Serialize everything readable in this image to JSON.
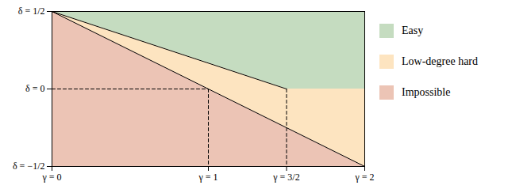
{
  "chart_data": {
    "type": "area",
    "xlim": [
      0,
      2
    ],
    "ylim": [
      -0.5,
      0.5
    ],
    "xticks": [
      {
        "value": 0,
        "label": "γ = 0"
      },
      {
        "value": 1,
        "label": "γ = 1"
      },
      {
        "value": 1.5,
        "label": "γ = 3/2"
      },
      {
        "value": 2,
        "label": "γ = 2"
      }
    ],
    "yticks": [
      {
        "value": 0.5,
        "label": "δ = 1/2"
      },
      {
        "value": 0,
        "label": "δ = 0"
      },
      {
        "value": -0.5,
        "label": "δ = −1/2"
      }
    ],
    "grid": false,
    "legend": "right",
    "series": [
      {
        "name": "Easy",
        "type": "area",
        "color": "#c5dcc0",
        "x": [
          0,
          1,
          1.5,
          2
        ],
        "values": [
          0.5,
          0.5,
          0.5,
          0.5
        ],
        "lower": [
          0.5,
          0.1667,
          0,
          0
        ]
      },
      {
        "name": "Low-degree hard",
        "type": "area",
        "color": "#fde4c0",
        "x": [
          0,
          1,
          1.5,
          2
        ],
        "values": [
          0.5,
          0.1667,
          0,
          0
        ],
        "lower": [
          0.5,
          0,
          -0.25,
          -0.5
        ]
      },
      {
        "name": "Impossible",
        "type": "area",
        "color": "#ecc4b5",
        "x": [
          0,
          1,
          1.5,
          2
        ],
        "values": [
          0.5,
          0,
          -0.25,
          -0.5
        ],
        "lower": [
          -0.5,
          -0.5,
          -0.5,
          -0.5
        ]
      },
      {
        "type": "line",
        "color": "#000000",
        "line_style": "solid",
        "x": [
          0,
          2
        ],
        "values": [
          0.5,
          -0.5
        ]
      },
      {
        "type": "line",
        "color": "#000000",
        "line_style": "solid",
        "x": [
          0,
          1.5
        ],
        "values": [
          0.5,
          0
        ]
      },
      {
        "type": "line",
        "color": "#000000",
        "line_style": "dashed",
        "x": [
          0,
          1
        ],
        "values": [
          0,
          0
        ]
      },
      {
        "type": "line",
        "color": "#000000",
        "line_style": "dashed",
        "x": [
          1,
          1
        ],
        "values": [
          0,
          -0.5
        ]
      },
      {
        "type": "line",
        "color": "#000000",
        "line_style": "dashed",
        "x": [
          1.5,
          1.5
        ],
        "values": [
          0,
          -0.5
        ]
      }
    ]
  }
}
